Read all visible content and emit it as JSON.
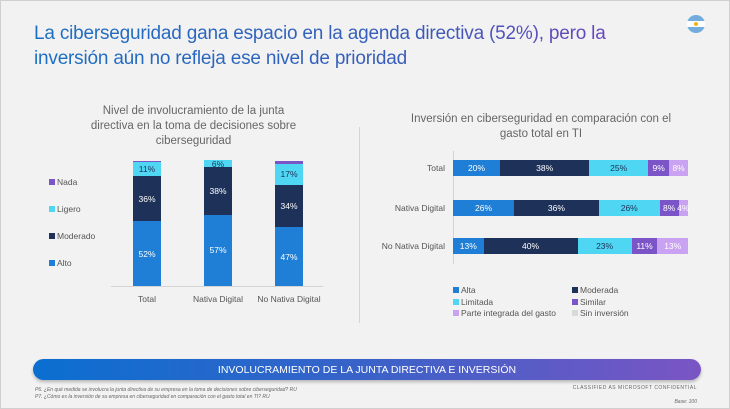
{
  "title": "La ciberseguridad gana espacio en la agenda directiva (52%), pero la inversión aún no refleja ese nivel de prioridad",
  "flag_icon": "argentina-flag",
  "chart_data": [
    {
      "type": "bar",
      "orientation": "vertical",
      "stacked": true,
      "title": "Nivel de involucramiento de la junta directiva en la toma de decisiones sobre ciberseguridad",
      "categories": [
        "Total",
        "Nativa Digital",
        "No Nativa Digital"
      ],
      "series": [
        {
          "name": "Alto",
          "color": "#1f7fd6",
          "values": [
            52,
            57,
            47
          ],
          "labels": [
            "52%",
            "57%",
            "47%"
          ]
        },
        {
          "name": "Moderado",
          "color": "#1e3158",
          "values": [
            36,
            38,
            34
          ],
          "labels": [
            "36%",
            "38%",
            "34%"
          ]
        },
        {
          "name": "Ligero",
          "color": "#4fd6f2",
          "values": [
            11,
            6,
            17
          ],
          "labels": [
            "11%",
            "6%",
            "17%"
          ]
        },
        {
          "name": "Nada",
          "color": "#7b55c8",
          "values": [
            1,
            0,
            2
          ],
          "labels": [
            "",
            "",
            ""
          ]
        }
      ],
      "legend": "left"
    },
    {
      "type": "bar",
      "orientation": "horizontal",
      "stacked": true,
      "title": "Inversión en ciberseguridad en comparación con el gasto total en TI",
      "categories": [
        "Total",
        "Nativa Digital",
        "No Nativa Digital"
      ],
      "series": [
        {
          "name": "Alta",
          "color": "#1f7fd6",
          "values": [
            20,
            26,
            13
          ],
          "labels": [
            "20%",
            "26%",
            "13%"
          ]
        },
        {
          "name": "Moderada",
          "color": "#1e3158",
          "values": [
            38,
            36,
            40
          ],
          "labels": [
            "38%",
            "36%",
            "40%"
          ]
        },
        {
          "name": "Limitada",
          "color": "#4fd6f2",
          "values": [
            25,
            26,
            23
          ],
          "labels": [
            "25%",
            "26%",
            "23%"
          ]
        },
        {
          "name": "Similar",
          "color": "#7b55c8",
          "values": [
            9,
            8,
            11
          ],
          "labels": [
            "9%",
            "8%",
            "11%"
          ]
        },
        {
          "name": "Parte integrada del gasto",
          "color": "#c9a2f2",
          "values": [
            8,
            4,
            13
          ],
          "labels": [
            "8%",
            "4%",
            "13%"
          ]
        },
        {
          "name": "Sin inversión",
          "color": "#d9d9d9",
          "values": [
            0,
            0,
            0
          ],
          "labels": [
            "",
            "",
            ""
          ]
        }
      ],
      "legend": "bottom"
    }
  ],
  "banner": "INVOLUCRAMIENTO DE LA JUNTA DIRECTIVA E INVERSIÓN",
  "footnotes": [
    "P6. ¿En qué medida se involucra la junta directiva de su empresa en la toma de decisiones sobre ciberseguridad? RU",
    "P7. ¿Cómo es la inversión de su empresa en ciberseguridad en comparación con el gasto total en TI? RU"
  ],
  "classification": "CLASSIFIED AS MICROSOFT CONFIDENTIAL",
  "base": "Base: 100"
}
